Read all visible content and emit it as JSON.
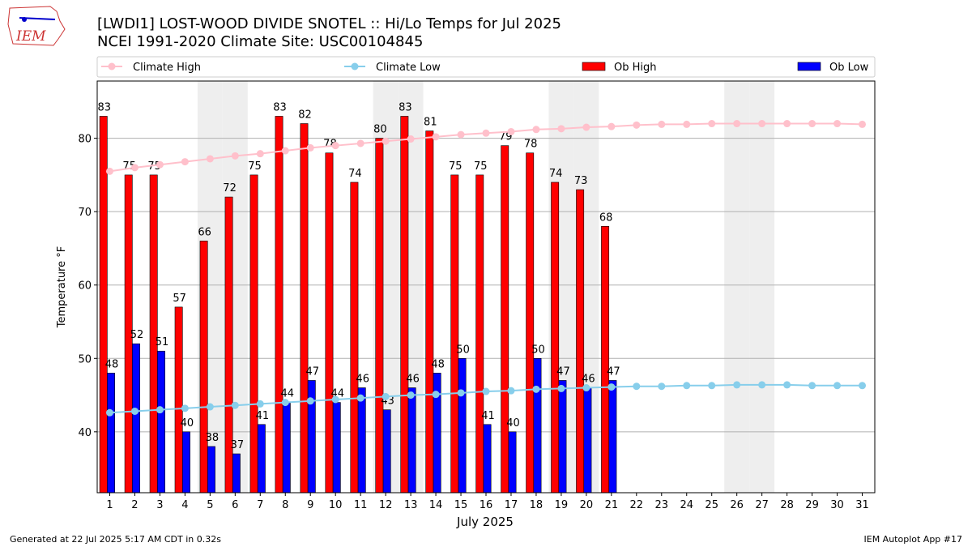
{
  "chart_data": {
    "type": "bar",
    "title": "[LWDI1] LOST-WOOD DIVIDE SNOTEL :: Hi/Lo Temps for Jul 2025",
    "subtitle": "NCEI 1991-2020 Climate Site: USC00104845",
    "xlabel": "July 2025",
    "ylabel": "Temperature °F",
    "x": [
      1,
      2,
      3,
      4,
      5,
      6,
      7,
      8,
      9,
      10,
      11,
      12,
      13,
      14,
      15,
      16,
      17,
      18,
      19,
      20,
      21,
      22,
      23,
      24,
      25,
      26,
      27,
      28,
      29,
      30,
      31
    ],
    "xlim": [
      0.5,
      31.5
    ],
    "xticks": [
      1,
      2,
      3,
      4,
      5,
      6,
      7,
      8,
      9,
      10,
      11,
      12,
      13,
      14,
      15,
      16,
      17,
      18,
      19,
      20,
      21,
      22,
      23,
      24,
      25,
      26,
      27,
      28,
      29,
      30,
      31
    ],
    "ylim": [
      31.7,
      87.8
    ],
    "yticks": [
      40,
      50,
      60,
      70,
      80
    ],
    "grid": true,
    "legend": "top",
    "shaded_days": [
      5,
      6,
      12,
      13,
      19,
      20,
      26,
      27
    ],
    "series": [
      {
        "name": "Climate High",
        "kind": "line",
        "color": "#ffc0cb",
        "values": [
          75.5,
          76.0,
          76.4,
          76.8,
          77.2,
          77.6,
          77.9,
          78.3,
          78.7,
          79.0,
          79.3,
          79.6,
          79.9,
          80.2,
          80.5,
          80.7,
          80.9,
          81.2,
          81.3,
          81.5,
          81.6,
          81.8,
          81.9,
          81.9,
          82.0,
          82.0,
          82.0,
          82.0,
          82.0,
          82.0,
          81.9
        ]
      },
      {
        "name": "Climate Low",
        "kind": "line",
        "color": "#87ceeb",
        "values": [
          42.6,
          42.8,
          43.0,
          43.2,
          43.4,
          43.6,
          43.8,
          44.0,
          44.2,
          44.4,
          44.6,
          44.8,
          45.0,
          45.1,
          45.3,
          45.5,
          45.6,
          45.8,
          45.9,
          46.0,
          46.1,
          46.2,
          46.2,
          46.3,
          46.3,
          46.4,
          46.4,
          46.4,
          46.3,
          46.3,
          46.3
        ]
      },
      {
        "name": "Ob High",
        "kind": "bar",
        "color": "#ff0000",
        "values": [
          83,
          75,
          75,
          57,
          66,
          72,
          75,
          83,
          82,
          78,
          74,
          80,
          83,
          81,
          75,
          75,
          79,
          78,
          74,
          73,
          68,
          null,
          null,
          null,
          null,
          null,
          null,
          null,
          null,
          null,
          null
        ]
      },
      {
        "name": "Ob Low",
        "kind": "bar",
        "color": "#0000ff",
        "values": [
          48,
          52,
          51,
          40,
          38,
          37,
          41,
          44,
          47,
          44,
          46,
          43,
          46,
          48,
          50,
          41,
          40,
          50,
          47,
          46,
          47,
          null,
          null,
          null,
          null,
          null,
          null,
          null,
          null,
          null,
          null
        ]
      }
    ],
    "footer_left": "Generated at 22 Jul 2025 5:17 AM CDT in 0.32s",
    "footer_right": "IEM Autoplot App #17",
    "logo_text": "IEM"
  }
}
